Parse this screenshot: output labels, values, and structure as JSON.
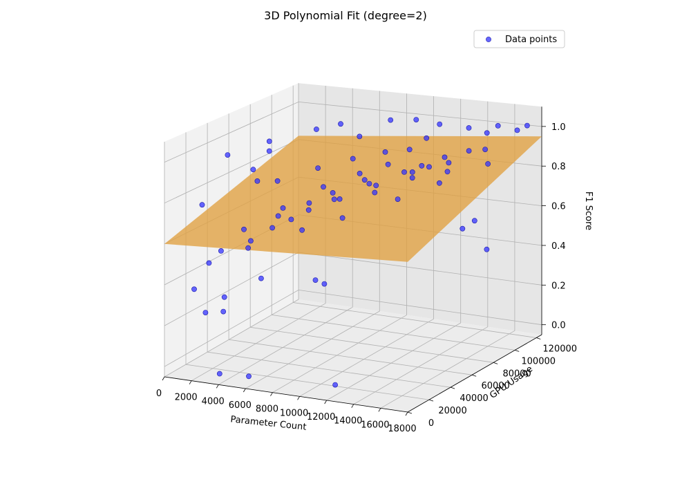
{
  "chart_data": {
    "type": "scatter",
    "title": "3D Polynomial Fit (degree=2)",
    "xlabel": "Parameter Count",
    "ylabel": "GPU Usage",
    "zlabel": "F1 Score",
    "xlim": [
      0,
      18000
    ],
    "ylim": [
      0,
      125000
    ],
    "zlim": [
      -0.05,
      1.1
    ],
    "xticks": [
      0,
      2000,
      4000,
      6000,
      8000,
      10000,
      12000,
      14000,
      16000,
      18000
    ],
    "xtick_labels": [
      "0",
      "2000",
      "4000",
      "6000",
      "8000",
      "10000",
      "12000",
      "14000",
      "16000",
      "18000"
    ],
    "yticks": [
      0,
      20000,
      40000,
      60000,
      80000,
      100000,
      120000
    ],
    "ytick_labels": [
      "0",
      "20000",
      "40000",
      "60000",
      "80000",
      "100000",
      "120000"
    ],
    "zticks": [
      0.0,
      0.2,
      0.4,
      0.6,
      0.8,
      1.0
    ],
    "ztick_labels": [
      "0.0",
      "0.2",
      "0.4",
      "0.6",
      "0.8",
      "1.0"
    ],
    "grid": true,
    "legend": {
      "position": "top-right",
      "entries": [
        "Data points"
      ]
    },
    "series": [
      {
        "name": "Data points",
        "kind": "scatter",
        "color": "#0000ff",
        "points": [
          [
            1500,
            40000,
            0.95
          ],
          [
            3000,
            60000,
            0.98
          ],
          [
            4500,
            85000,
            0.99
          ],
          [
            5500,
            95000,
            1.0
          ],
          [
            8000,
            110000,
            1.0
          ],
          [
            9500,
            115000,
            1.0
          ],
          [
            11000,
            118000,
            0.98
          ],
          [
            13000,
            120000,
            0.97
          ],
          [
            15000,
            122000,
            0.99
          ],
          [
            17000,
            124000,
            1.0
          ],
          [
            2200,
            70000,
            0.9
          ],
          [
            6500,
            100000,
            0.93
          ],
          [
            10500,
            112000,
            0.92
          ],
          [
            14500,
            118000,
            0.96
          ],
          [
            16500,
            121000,
            0.98
          ],
          [
            1200,
            20000,
            0.75
          ],
          [
            3500,
            30000,
            0.62
          ],
          [
            5200,
            45000,
            0.7
          ],
          [
            7000,
            60000,
            0.78
          ],
          [
            8500,
            75000,
            0.82
          ],
          [
            9800,
            85000,
            0.85
          ],
          [
            11500,
            95000,
            0.83
          ],
          [
            12800,
            100000,
            0.87
          ],
          [
            14200,
            105000,
            0.9
          ],
          [
            6000,
            25000,
            0.66
          ],
          [
            7500,
            40000,
            0.72
          ],
          [
            9000,
            50000,
            0.76
          ],
          [
            10500,
            65000,
            0.8
          ],
          [
            12000,
            80000,
            0.84
          ],
          [
            4000,
            55000,
            0.8
          ],
          [
            5800,
            70000,
            0.84
          ],
          [
            7200,
            85000,
            0.86
          ],
          [
            8800,
            95000,
            0.88
          ],
          [
            10200,
            100000,
            0.89
          ],
          [
            3000,
            15000,
            0.55
          ],
          [
            4800,
            20000,
            0.6
          ],
          [
            6600,
            35000,
            0.68
          ],
          [
            8200,
            55000,
            0.74
          ],
          [
            9600,
            70000,
            0.79
          ],
          [
            11000,
            85000,
            0.82
          ],
          [
            13500,
            95000,
            0.86
          ],
          [
            15000,
            110000,
            0.9
          ],
          [
            2500,
            10000,
            0.5
          ],
          [
            5000,
            15000,
            0.58
          ],
          [
            7800,
            30000,
            0.65
          ],
          [
            10000,
            40000,
            0.7
          ],
          [
            12500,
            60000,
            0.76
          ],
          [
            14000,
            80000,
            0.8
          ],
          [
            16000,
            100000,
            0.86
          ],
          [
            1800,
            5000,
            0.38
          ],
          [
            3800,
            8000,
            0.35
          ],
          [
            6200,
            12000,
            0.45
          ],
          [
            2800,
            3000,
            0.28
          ],
          [
            4200,
            2000,
            0.3
          ],
          [
            8000,
            40000,
            0.38
          ],
          [
            8500,
            42000,
            0.36
          ],
          [
            16500,
            70000,
            0.62
          ],
          [
            17000,
            75000,
            0.65
          ],
          [
            17500,
            80000,
            0.5
          ],
          [
            4000,
            1000,
            0.0
          ],
          [
            6000,
            3000,
            0.0
          ],
          [
            12000,
            8000,
            0.0
          ],
          [
            11200,
            90000,
            0.78
          ],
          [
            7300,
            65000,
            0.74
          ],
          [
            5400,
            38000,
            0.68
          ],
          [
            9100,
            72000,
            0.8
          ],
          [
            12600,
            88000,
            0.85
          ],
          [
            6900,
            48000,
            0.73
          ],
          [
            13800,
            90000,
            0.83
          ],
          [
            10800,
            60000,
            0.78
          ],
          [
            3300,
            45000,
            0.82
          ],
          [
            2600,
            50000,
            0.86
          ]
        ]
      },
      {
        "name": "",
        "kind": "surface",
        "color": "#e0a040",
        "corners": [
          [
            0,
            0,
            0.6
          ],
          [
            18000,
            0,
            0.65
          ],
          [
            18000,
            125000,
            0.95
          ],
          [
            0,
            125000,
            0.82
          ]
        ]
      }
    ]
  }
}
